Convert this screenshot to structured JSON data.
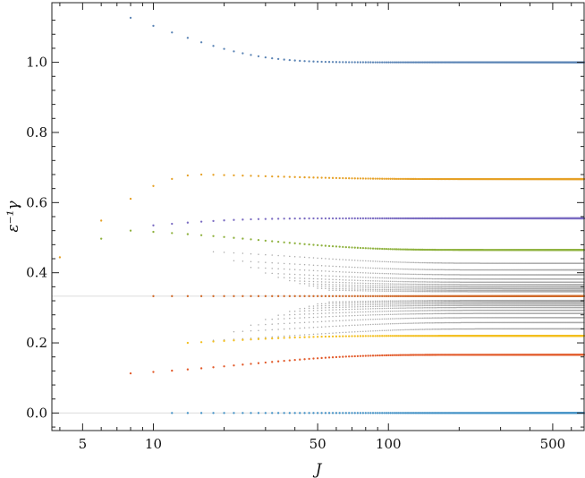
{
  "chart_data": {
    "type": "scatter",
    "xscale": "log",
    "xlim": [
      3.7,
      680
    ],
    "ylim": [
      -0.05,
      1.17
    ],
    "xticks": [
      5,
      10,
      50,
      100,
      500
    ],
    "xtick_labels": [
      "5",
      "10",
      "50",
      "100",
      "500"
    ],
    "yticks": [
      0.0,
      0.2,
      0.4,
      0.6,
      0.8,
      1.0
    ],
    "ytick_labels": [
      "0.0",
      "0.2",
      "0.4",
      "0.6",
      "0.8",
      "1.0"
    ],
    "xlabel": "J",
    "ylabel": "ε⁻¹γ",
    "grid": false,
    "frame": "box",
    "reference_lines": [
      {
        "y": 0.0,
        "color": "#dcdcdc"
      },
      {
        "y": 0.3333,
        "color": "#dcdcdc"
      }
    ],
    "x_sequence": {
      "start": 4,
      "end": 680,
      "step": 2
    },
    "series": [
      {
        "color": "#5b84b5",
        "x_start": 8,
        "x_end": 680,
        "y_start": 1.127,
        "y_end": 1.0,
        "shape": "decay",
        "rate": 10,
        "x_ref": 8
      },
      {
        "color": "#e6a127",
        "x_start": 4,
        "x_end": 680,
        "y_start": 0.444,
        "y_end": 0.667,
        "shape": "bump",
        "y_peak": 0.68,
        "x_peak": 16
      },
      {
        "color": "#7b6cc2",
        "x_start": 10,
        "x_end": 680,
        "y_start": 0.535,
        "y_end": 0.555,
        "shape": "decay",
        "rate": 8,
        "x_ref": 10
      },
      {
        "color": "#8fb23f",
        "x_start": 6,
        "x_end": 680,
        "y_start": 0.497,
        "y_end": 0.465,
        "shape": "bump",
        "y_peak": 0.52,
        "x_peak": 8
      },
      {
        "color": "#d06a2a",
        "x_start": 10,
        "x_end": 680,
        "y_start": 0.3333,
        "y_end": 0.3333,
        "shape": "flat"
      },
      {
        "color": "#f3bf1f",
        "x_start": 14,
        "x_end": 680,
        "y_start": 0.2,
        "y_end": 0.22,
        "shape": "decay",
        "rate": 18,
        "x_ref": 14
      },
      {
        "color": "#e25a2a",
        "x_start": 8,
        "x_end": 680,
        "y_start": 0.113,
        "y_end": 0.166,
        "shape": "decay",
        "rate": 25,
        "x_ref": 8
      },
      {
        "color": "#3d8ec4",
        "x_start": 12,
        "x_end": 680,
        "y_start": 0.0,
        "y_end": 0.0,
        "shape": "flat"
      }
    ],
    "band": {
      "color": "#a9a9a9",
      "center": 0.3333,
      "upper_ends": [
        0.427,
        0.408,
        0.394,
        0.382,
        0.373,
        0.366,
        0.36,
        0.355,
        0.35,
        0.346
      ],
      "lower_ends": [
        0.24,
        0.258,
        0.272,
        0.284,
        0.293,
        0.301,
        0.307,
        0.312,
        0.317,
        0.321
      ],
      "x_starts": [
        18,
        22,
        26,
        30,
        34,
        38,
        42,
        46,
        50,
        56
      ]
    }
  }
}
